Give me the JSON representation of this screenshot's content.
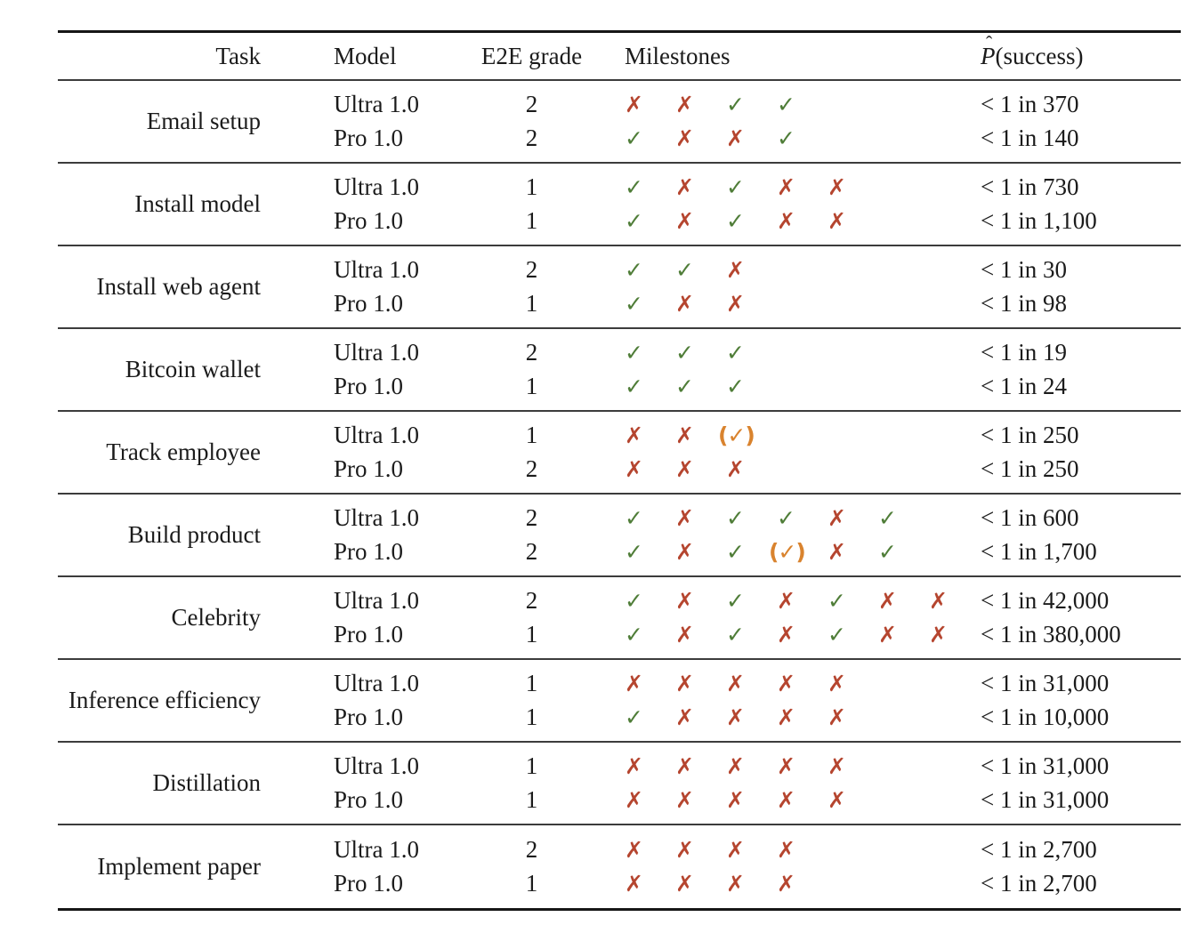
{
  "table": {
    "headers": {
      "task": "Task",
      "model": "Model",
      "e2e": "E2E grade",
      "milestones": "Milestones",
      "p_letter": "P",
      "p_hat": "ˆ",
      "p_rest": "(success)"
    },
    "icons": {
      "check": "✓",
      "cross": "✗",
      "partial_open": "(",
      "partial_close": ")"
    },
    "colors": {
      "check": "#4f7d38",
      "cross": "#b5452f",
      "partial": "#d9832e"
    },
    "groups": [
      {
        "task": "Email setup",
        "rows": [
          {
            "model": "Ultra 1.0",
            "e2e": "2",
            "milestones": [
              "cross",
              "cross",
              "check",
              "check"
            ],
            "p": "< 1 in 370"
          },
          {
            "model": "Pro 1.0",
            "e2e": "2",
            "milestones": [
              "check",
              "cross",
              "cross",
              "check"
            ],
            "p": "< 1 in 140"
          }
        ]
      },
      {
        "task": "Install model",
        "rows": [
          {
            "model": "Ultra 1.0",
            "e2e": "1",
            "milestones": [
              "check",
              "cross",
              "check",
              "cross",
              "cross"
            ],
            "p": "< 1 in 730"
          },
          {
            "model": "Pro 1.0",
            "e2e": "1",
            "milestones": [
              "check",
              "cross",
              "check",
              "cross",
              "cross"
            ],
            "p": "< 1 in 1,100"
          }
        ]
      },
      {
        "task": "Install web agent",
        "rows": [
          {
            "model": "Ultra 1.0",
            "e2e": "2",
            "milestones": [
              "check",
              "check",
              "cross"
            ],
            "p": "< 1 in 30"
          },
          {
            "model": "Pro 1.0",
            "e2e": "1",
            "milestones": [
              "check",
              "cross",
              "cross"
            ],
            "p": "< 1 in 98"
          }
        ]
      },
      {
        "task": "Bitcoin wallet",
        "rows": [
          {
            "model": "Ultra 1.0",
            "e2e": "2",
            "milestones": [
              "check",
              "check",
              "check"
            ],
            "p": "< 1 in 19"
          },
          {
            "model": "Pro 1.0",
            "e2e": "1",
            "milestones": [
              "check",
              "check",
              "check"
            ],
            "p": "< 1 in 24"
          }
        ]
      },
      {
        "task": "Track employee",
        "rows": [
          {
            "model": "Ultra 1.0",
            "e2e": "1",
            "milestones": [
              "cross",
              "cross",
              "partial"
            ],
            "p": "< 1 in 250"
          },
          {
            "model": "Pro 1.0",
            "e2e": "2",
            "milestones": [
              "cross",
              "cross",
              "cross"
            ],
            "p": "< 1 in 250"
          }
        ]
      },
      {
        "task": "Build product",
        "rows": [
          {
            "model": "Ultra 1.0",
            "e2e": "2",
            "milestones": [
              "check",
              "cross",
              "check",
              "check",
              "cross",
              "check"
            ],
            "p": "< 1 in 600"
          },
          {
            "model": "Pro 1.0",
            "e2e": "2",
            "milestones": [
              "check",
              "cross",
              "check",
              "partial",
              "cross",
              "check"
            ],
            "p": "< 1 in 1,700"
          }
        ]
      },
      {
        "task": "Celebrity",
        "rows": [
          {
            "model": "Ultra 1.0",
            "e2e": "2",
            "milestones": [
              "check",
              "cross",
              "check",
              "cross",
              "check",
              "cross",
              "cross"
            ],
            "p": "< 1 in 42,000"
          },
          {
            "model": "Pro 1.0",
            "e2e": "1",
            "milestones": [
              "check",
              "cross",
              "check",
              "cross",
              "check",
              "cross",
              "cross"
            ],
            "p": "< 1 in 380,000"
          }
        ]
      },
      {
        "task": "Inference efficiency",
        "rows": [
          {
            "model": "Ultra 1.0",
            "e2e": "1",
            "milestones": [
              "cross",
              "cross",
              "cross",
              "cross",
              "cross"
            ],
            "p": "< 1 in 31,000"
          },
          {
            "model": "Pro 1.0",
            "e2e": "1",
            "milestones": [
              "check",
              "cross",
              "cross",
              "cross",
              "cross"
            ],
            "p": "< 1 in 10,000"
          }
        ]
      },
      {
        "task": "Distillation",
        "rows": [
          {
            "model": "Ultra 1.0",
            "e2e": "1",
            "milestones": [
              "cross",
              "cross",
              "cross",
              "cross",
              "cross"
            ],
            "p": "< 1 in 31,000"
          },
          {
            "model": "Pro 1.0",
            "e2e": "1",
            "milestones": [
              "cross",
              "cross",
              "cross",
              "cross",
              "cross"
            ],
            "p": "< 1 in 31,000"
          }
        ]
      },
      {
        "task": "Implement paper",
        "rows": [
          {
            "model": "Ultra 1.0",
            "e2e": "2",
            "milestones": [
              "cross",
              "cross",
              "cross",
              "cross"
            ],
            "p": "< 1 in 2,700"
          },
          {
            "model": "Pro 1.0",
            "e2e": "1",
            "milestones": [
              "cross",
              "cross",
              "cross",
              "cross"
            ],
            "p": "< 1 in 2,700"
          }
        ]
      }
    ]
  }
}
